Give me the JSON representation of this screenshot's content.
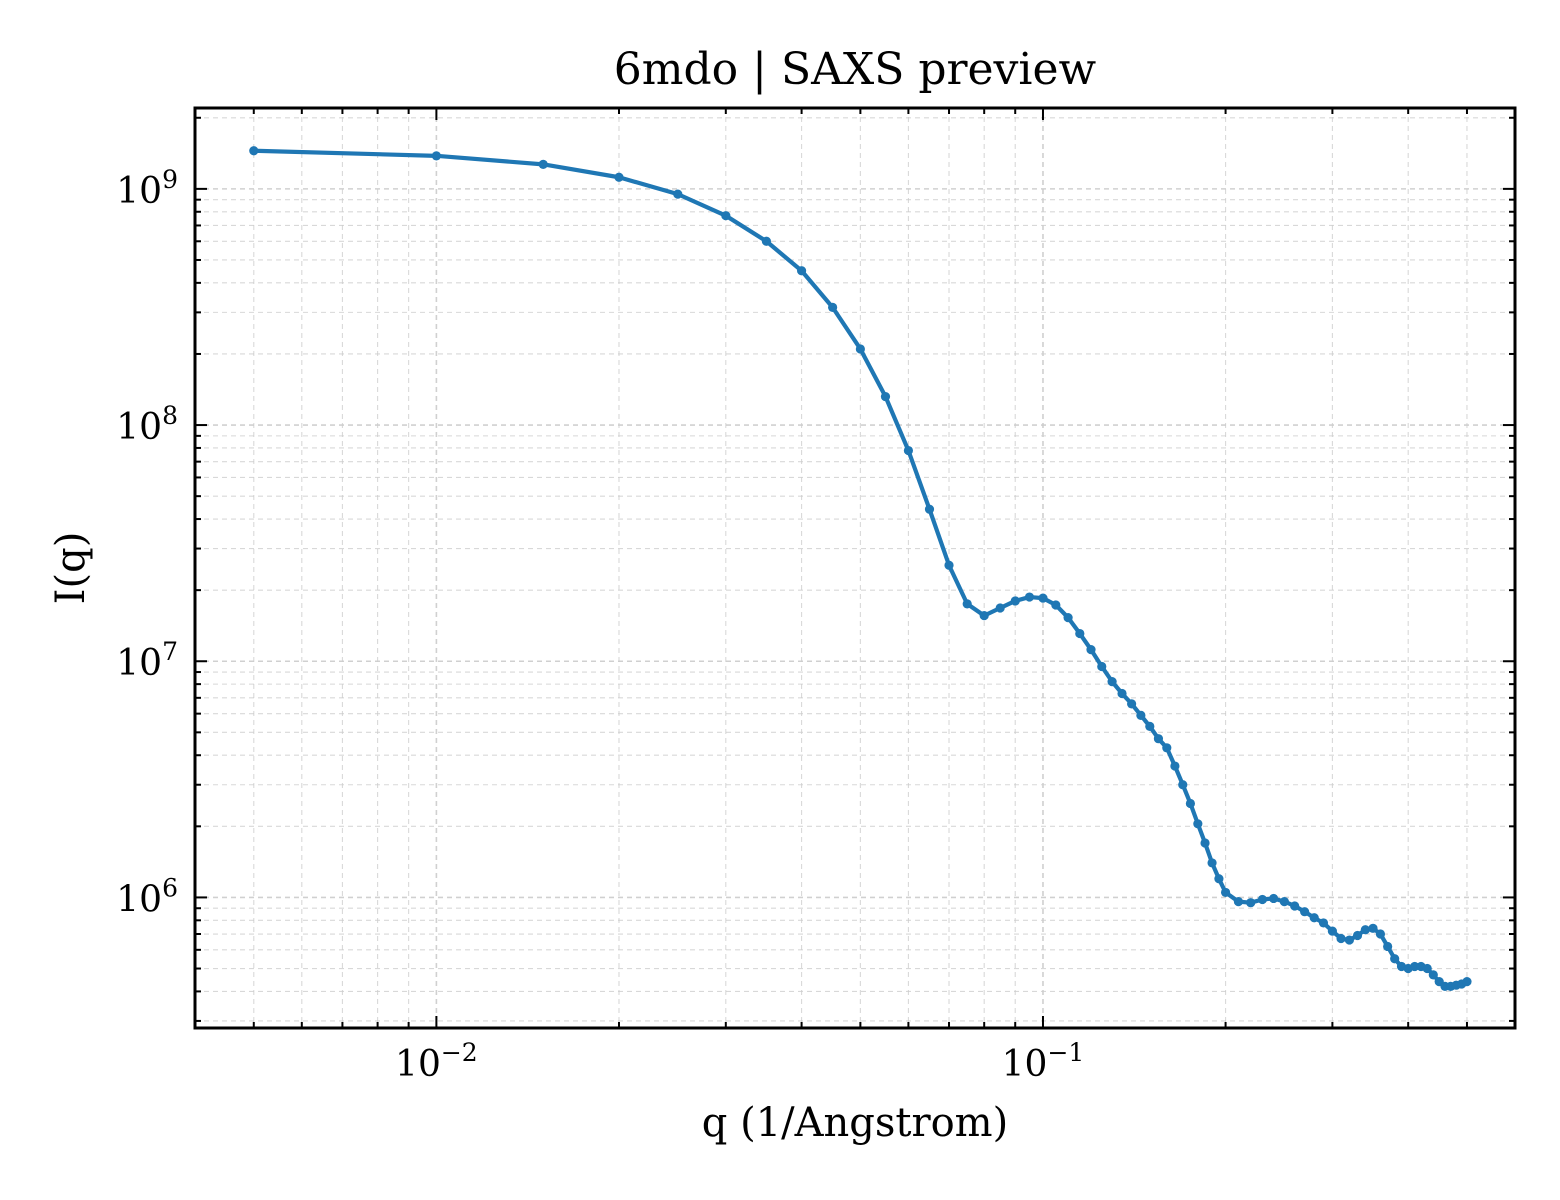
{
  "chart_data": {
    "type": "line",
    "title": "6mdo | SAXS preview",
    "xlabel": "q (1/Angstrom)",
    "ylabel": "I(q)",
    "xscale": "log",
    "yscale": "log",
    "xlim": [
      0.004,
      0.6
    ],
    "ylim": [
      280000,
      2200000000
    ],
    "grid": true,
    "legend": "none",
    "x_ticks": [
      {
        "value": 0.01,
        "base": "10",
        "exp": "−2"
      },
      {
        "value": 0.1,
        "base": "10",
        "exp": "−1"
      }
    ],
    "y_ticks": [
      {
        "value": 1000000,
        "base": "10",
        "exp": "6"
      },
      {
        "value": 10000000,
        "base": "10",
        "exp": "7"
      },
      {
        "value": 100000000,
        "base": "10",
        "exp": "8"
      },
      {
        "value": 1000000000,
        "base": "10",
        "exp": "9"
      }
    ],
    "series": [
      {
        "color": "#1f77b4",
        "marker": "dot",
        "points": [
          [
            0.005,
            1450000000
          ],
          [
            0.01,
            1380000000
          ],
          [
            0.015,
            1270000000
          ],
          [
            0.02,
            1120000000
          ],
          [
            0.025,
            950000000
          ],
          [
            0.03,
            770000000
          ],
          [
            0.035,
            600000000
          ],
          [
            0.04,
            450000000
          ],
          [
            0.045,
            315000000
          ],
          [
            0.05,
            210000000
          ],
          [
            0.055,
            132000000
          ],
          [
            0.06,
            78000000
          ],
          [
            0.065,
            44000000
          ],
          [
            0.07,
            25500000
          ],
          [
            0.075,
            17500000
          ],
          [
            0.08,
            15600000
          ],
          [
            0.085,
            16800000
          ],
          [
            0.09,
            18000000
          ],
          [
            0.095,
            18700000
          ],
          [
            0.1,
            18500000
          ],
          [
            0.105,
            17300000
          ],
          [
            0.11,
            15300000
          ],
          [
            0.115,
            13100000
          ],
          [
            0.12,
            11200000
          ],
          [
            0.125,
            9500000
          ],
          [
            0.13,
            8200000
          ],
          [
            0.135,
            7300000
          ],
          [
            0.14,
            6600000
          ],
          [
            0.145,
            5900000
          ],
          [
            0.15,
            5300000
          ],
          [
            0.155,
            4700000
          ],
          [
            0.16,
            4300000
          ],
          [
            0.165,
            3600000
          ],
          [
            0.17,
            3000000
          ],
          [
            0.175,
            2500000
          ],
          [
            0.18,
            2050000
          ],
          [
            0.185,
            1700000
          ],
          [
            0.19,
            1400000
          ],
          [
            0.195,
            1200000
          ],
          [
            0.2,
            1050000
          ],
          [
            0.21,
            960000
          ],
          [
            0.22,
            950000
          ],
          [
            0.23,
            980000
          ],
          [
            0.24,
            990000
          ],
          [
            0.25,
            960000
          ],
          [
            0.26,
            920000
          ],
          [
            0.27,
            870000
          ],
          [
            0.28,
            820000
          ],
          [
            0.29,
            780000
          ],
          [
            0.3,
            720000
          ],
          [
            0.31,
            670000
          ],
          [
            0.32,
            660000
          ],
          [
            0.33,
            690000
          ],
          [
            0.34,
            730000
          ],
          [
            0.35,
            740000
          ],
          [
            0.36,
            700000
          ],
          [
            0.37,
            620000
          ],
          [
            0.38,
            550000
          ],
          [
            0.39,
            510000
          ],
          [
            0.4,
            500000
          ],
          [
            0.41,
            510000
          ],
          [
            0.42,
            510000
          ],
          [
            0.43,
            500000
          ],
          [
            0.44,
            470000
          ],
          [
            0.45,
            440000
          ],
          [
            0.46,
            420000
          ],
          [
            0.47,
            420000
          ],
          [
            0.48,
            425000
          ],
          [
            0.49,
            430000
          ],
          [
            0.5,
            440000
          ]
        ]
      }
    ]
  }
}
